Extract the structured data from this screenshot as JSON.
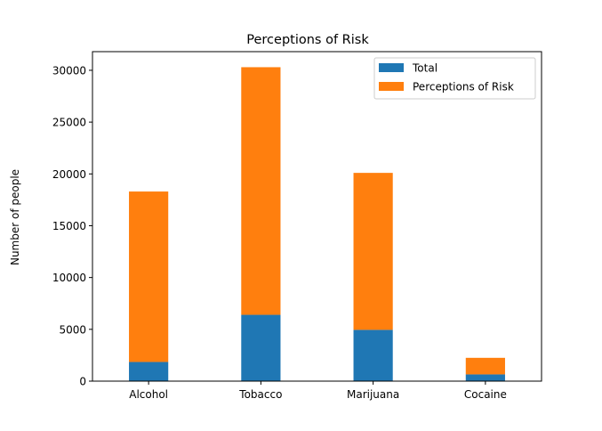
{
  "chart_data": {
    "type": "bar",
    "stacked": true,
    "title": "Perceptions of Risk",
    "xlabel": "",
    "ylabel": "Number of people",
    "categories": [
      "Alcohol",
      "Tobacco",
      "Marijuana",
      "Cocaine"
    ],
    "series": [
      {
        "name": "Total",
        "color": "#1f77b4",
        "values": [
          1850,
          6400,
          4950,
          650
        ]
      },
      {
        "name": "Perceptions of Risk",
        "color": "#ff7f0e",
        "values": [
          16450,
          23900,
          15150,
          1600
        ]
      }
    ],
    "ylim": [
      0,
      31800
    ],
    "yticks": [
      0,
      5000,
      10000,
      15000,
      20000,
      25000,
      30000
    ],
    "ytick_labels": [
      "0",
      "5000",
      "10000",
      "15000",
      "20000",
      "25000",
      "30000"
    ],
    "grid": false,
    "legend_position": "top-right"
  }
}
